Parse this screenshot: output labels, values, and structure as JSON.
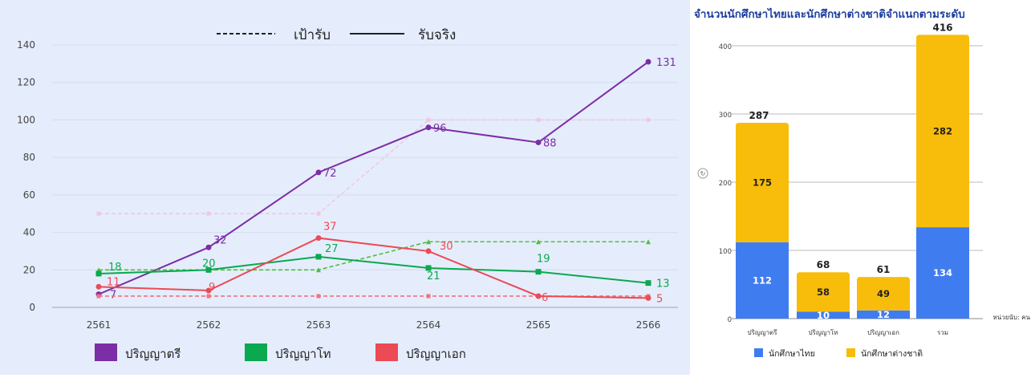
{
  "chart_data": [
    {
      "type": "line",
      "legend_top": [
        {
          "style": "dashed",
          "label": "เป้ารับ"
        },
        {
          "style": "solid",
          "label": "รับจริง"
        }
      ],
      "categories": [
        "2561",
        "2562",
        "2563",
        "2564",
        "2565",
        "2566"
      ],
      "ylim": [
        0,
        140
      ],
      "yticks": [
        "0",
        "20",
        "40",
        "60",
        "80",
        "100",
        "120",
        "140"
      ],
      "grid": "horizontal",
      "legend_bottom_placement": "bottom",
      "series": [
        {
          "name": "ปริญญาตรี",
          "color": "#7b2ea5",
          "target_color": "#f2c6e8",
          "marker": "circle",
          "actual": [
            7,
            32,
            72,
            96,
            88,
            131
          ],
          "target": [
            50,
            50,
            50,
            100,
            100,
            100
          ],
          "labels": [
            "7",
            "32",
            "72",
            "96",
            "88",
            "131"
          ]
        },
        {
          "name": "ปริญญาโท",
          "color": "#0aa84f",
          "target_color": "#4fbf3a",
          "marker": "square",
          "actual": [
            18,
            20,
            27,
            21,
            19,
            13
          ],
          "target": [
            20,
            20,
            20,
            35,
            35,
            35
          ],
          "labels": [
            "18",
            "20",
            "27",
            "21",
            "19",
            "13"
          ]
        },
        {
          "name": "ปริญญาเอก",
          "color": "#ec4a55",
          "target_color": "#f2737d",
          "marker": "circle",
          "actual": [
            11,
            9,
            37,
            30,
            6,
            5
          ],
          "target": [
            6,
            6,
            6,
            6,
            6,
            6
          ],
          "labels": [
            "11",
            "9",
            "37",
            "30",
            "6",
            "5"
          ]
        }
      ]
    },
    {
      "type": "bar",
      "stacked": true,
      "title": "จำนวนนักศึกษาไทยและนักศึกษาต่างชาติจำแนกตามระดับ",
      "categories": [
        "ปริญญาตรี",
        "ปริญญาโท",
        "ปริญญาเอก",
        "รวม"
      ],
      "ylim": [
        0,
        400
      ],
      "yticks": [
        "0",
        "100",
        "200",
        "300",
        "400"
      ],
      "grid": "horizontal",
      "unit_note": "หน่วยนับ: คน",
      "legend_placement": "bottom",
      "series": [
        {
          "name": "นักศึกษาไทย",
          "color": "#3f7cf0",
          "values": [
            112,
            10,
            12,
            134
          ]
        },
        {
          "name": "นักศึกษาต่างชาติ",
          "color": "#f7bd0a",
          "values": [
            175,
            58,
            49,
            282
          ]
        }
      ],
      "totals": [
        287,
        68,
        61,
        416
      ]
    }
  ]
}
